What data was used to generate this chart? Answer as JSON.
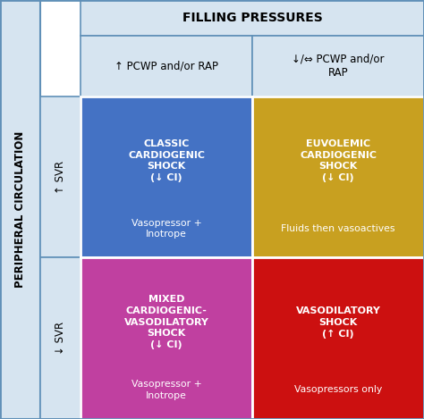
{
  "title": "FILLING PRESSURES",
  "col_headers": [
    "↑ PCWP and/or RAP",
    "↓/⇔ PCWP and/or\nRAP"
  ],
  "row_headers": [
    "↑ SVR",
    "↓ SVR"
  ],
  "side_label": "PERIPHERAL CIRCULATION",
  "cells": [
    {
      "row": 0,
      "col": 0,
      "title": "CLASSIC\nCARDIOGENIC\nSHOCK\n(↓ CI)",
      "subtitle": "Vasopressor +\nInotrope",
      "bg_color": "#4472C4",
      "text_color": "#FFFFFF"
    },
    {
      "row": 0,
      "col": 1,
      "title": "EUVOLEMIC\nCARDIOGENIC\nSHOCK\n(↓ CI)",
      "subtitle": "Fluids then vasoactives",
      "bg_color": "#C8A020",
      "text_color": "#FFFFFF"
    },
    {
      "row": 1,
      "col": 0,
      "title": "MIXED\nCARDIOGENIC-\nVASODILATORY\nSHOCK\n(↓ CI)",
      "subtitle": "Vasopressor +\nInotrope",
      "bg_color": "#C040A0",
      "text_color": "#FFFFFF"
    },
    {
      "row": 1,
      "col": 1,
      "title": "VASODILATORY\nSHOCK\n(↑ CI)",
      "subtitle": "Vasopressors only",
      "bg_color": "#CC1010",
      "text_color": "#FFFFFF"
    }
  ],
  "header_bg": "#D6E4F0",
  "border_color": "#6090B8",
  "side_bg": "#D6E4F0",
  "white": "#FFFFFF",
  "figsize": [
    4.74,
    4.69
  ],
  "dpi": 100
}
